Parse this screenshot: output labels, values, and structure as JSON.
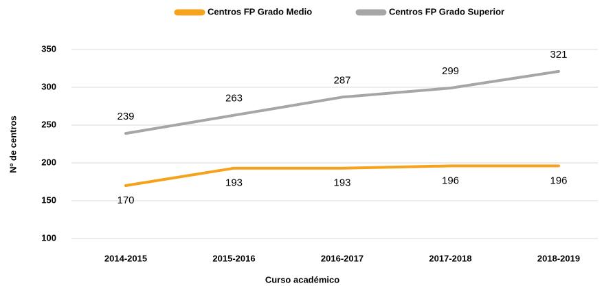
{
  "chart_data": {
    "type": "line",
    "x_label": "Curso académico",
    "y_label": "Nº de centros",
    "categories": [
      "2014-2015",
      "2015-2016",
      "2016-2017",
      "2017-2018",
      "2018-2019"
    ],
    "series": [
      {
        "name": "Centros FP Grado Medio",
        "color": "#f5a21c",
        "values": [
          170,
          193,
          193,
          196,
          196
        ]
      },
      {
        "name": "Centros FP Grado Superior",
        "color": "#a6a6a6",
        "values": [
          239,
          263,
          287,
          299,
          321
        ]
      }
    ],
    "ylim": [
      100,
      350
    ],
    "yticks": [
      100,
      150,
      200,
      250,
      300,
      350
    ],
    "grid": true,
    "legend": "top"
  }
}
